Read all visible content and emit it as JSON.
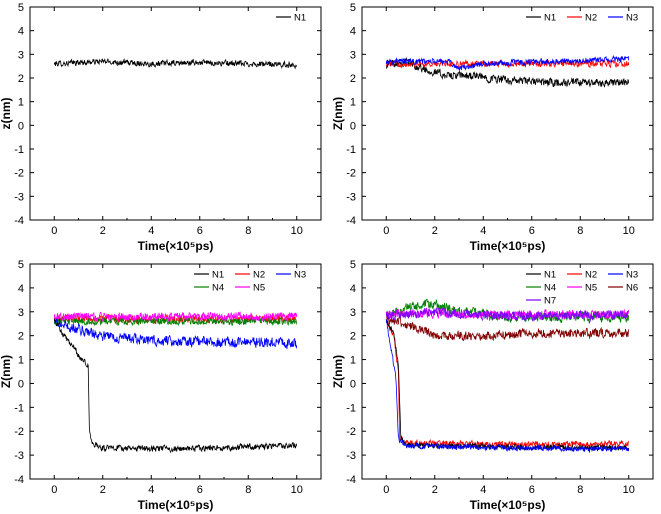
{
  "colors": {
    "N1": "#000000",
    "N2": "#ff0000",
    "N3": "#0000ff",
    "N4": "#008000",
    "N5": "#ff00ff",
    "N6": "#800000",
    "N7": "#8000ff"
  },
  "chart_data": [
    {
      "type": "line",
      "id": "top-left",
      "xlabel": "Time(×10⁵ps)",
      "ylabel": "z(nm)",
      "xlim": [
        -1,
        11
      ],
      "ylim": [
        -4,
        5
      ],
      "xticks": [
        "0",
        "2",
        "4",
        "6",
        "8",
        "10"
      ],
      "yticks": [
        "-4",
        "-3",
        "-2",
        "-1",
        "0",
        "1",
        "2",
        "3",
        "4",
        "5"
      ],
      "legend": [
        "N1"
      ],
      "legend_position": "top-right",
      "series": [
        {
          "name": "N1",
          "color": "#000000",
          "noise": 0.14,
          "x": [
            0,
            2,
            4,
            6,
            8,
            10
          ],
          "y": [
            2.6,
            2.7,
            2.6,
            2.65,
            2.6,
            2.55
          ]
        }
      ]
    },
    {
      "type": "line",
      "id": "top-right",
      "xlabel": "Time(×10⁵ps)",
      "ylabel": "Z(nm)",
      "xlim": [
        -1,
        11
      ],
      "ylim": [
        -4,
        5
      ],
      "xticks": [
        "0",
        "2",
        "4",
        "6",
        "8",
        "10"
      ],
      "yticks": [
        "-4",
        "-3",
        "-2",
        "-1",
        "0",
        "1",
        "2",
        "3",
        "4",
        "5"
      ],
      "legend": [
        "N1",
        "N2",
        "N3"
      ],
      "legend_position": "top-right",
      "series": [
        {
          "name": "N1",
          "color": "#000000",
          "noise": 0.2,
          "x": [
            0,
            0.8,
            1.5,
            2.5,
            3.5,
            5,
            7,
            10
          ],
          "y": [
            2.6,
            2.7,
            2.4,
            2.1,
            2.1,
            1.9,
            1.8,
            1.8
          ]
        },
        {
          "name": "N2",
          "color": "#ff0000",
          "noise": 0.15,
          "x": [
            0,
            5,
            10
          ],
          "y": [
            2.6,
            2.6,
            2.6
          ]
        },
        {
          "name": "N3",
          "color": "#0000ff",
          "noise": 0.15,
          "x": [
            0,
            2.5,
            3,
            4,
            7,
            10
          ],
          "y": [
            2.7,
            2.7,
            2.4,
            2.6,
            2.7,
            2.8
          ]
        }
      ]
    },
    {
      "type": "line",
      "id": "bottom-left",
      "xlabel": "Time(×10⁵ps)",
      "ylabel": "Z(nm)",
      "xlim": [
        -1,
        11
      ],
      "ylim": [
        -4,
        5
      ],
      "xticks": [
        "0",
        "2",
        "4",
        "6",
        "8",
        "10"
      ],
      "yticks": [
        "-4",
        "-3",
        "-2",
        "-1",
        "0",
        "1",
        "2",
        "3",
        "4",
        "5"
      ],
      "legend": [
        "N1",
        "N2",
        "N3",
        "N4",
        "N5"
      ],
      "legend_position": "top-right",
      "series": [
        {
          "name": "N2",
          "color": "#ff0000",
          "noise": 0.18,
          "x": [
            0,
            5,
            10
          ],
          "y": [
            2.7,
            2.7,
            2.7
          ]
        },
        {
          "name": "N4",
          "color": "#008000",
          "noise": 0.18,
          "x": [
            0,
            5,
            10
          ],
          "y": [
            2.6,
            2.6,
            2.6
          ]
        },
        {
          "name": "N3",
          "color": "#0000ff",
          "noise": 0.25,
          "x": [
            0,
            0.5,
            2,
            4,
            10
          ],
          "y": [
            2.6,
            2.4,
            2.0,
            1.8,
            1.7
          ]
        },
        {
          "name": "N5",
          "color": "#ff00ff",
          "noise": 0.2,
          "x": [
            0,
            5,
            10
          ],
          "y": [
            2.8,
            2.8,
            2.8
          ]
        },
        {
          "name": "N1",
          "color": "#000000",
          "noise": 0.15,
          "x": [
            0,
            0.4,
            0.8,
            1.1,
            1.4,
            1.45,
            1.6,
            2,
            5,
            10
          ],
          "y": [
            2.7,
            2.0,
            1.5,
            1.0,
            0.8,
            -2.0,
            -2.5,
            -2.7,
            -2.75,
            -2.6
          ]
        }
      ]
    },
    {
      "type": "line",
      "id": "bottom-right",
      "xlabel": "Time(×10⁵ps)",
      "ylabel": "Z(nm)",
      "xlim": [
        -1,
        11
      ],
      "ylim": [
        -4,
        5
      ],
      "xticks": [
        "0",
        "2",
        "4",
        "6",
        "8",
        "10"
      ],
      "yticks": [
        "-4",
        "-3",
        "-2",
        "-1",
        "0",
        "1",
        "2",
        "3",
        "4",
        "5"
      ],
      "legend": [
        "N1",
        "N2",
        "N3",
        "N4",
        "N5",
        "N6",
        "N7"
      ],
      "legend_position": "top-right",
      "series": [
        {
          "name": "N4",
          "color": "#008000",
          "noise": 0.25,
          "x": [
            0,
            1,
            2,
            3,
            5,
            10
          ],
          "y": [
            2.8,
            3.2,
            3.3,
            3.0,
            2.8,
            2.8
          ]
        },
        {
          "name": "N6",
          "color": "#800000",
          "noise": 0.22,
          "x": [
            0,
            0.5,
            1.2,
            2,
            4,
            6,
            10
          ],
          "y": [
            2.7,
            2.6,
            2.3,
            2.0,
            2.0,
            2.1,
            2.1
          ]
        },
        {
          "name": "N5",
          "color": "#ff00ff",
          "noise": 0.2,
          "x": [
            0,
            5,
            10
          ],
          "y": [
            2.9,
            2.9,
            2.9
          ]
        },
        {
          "name": "N7",
          "color": "#8000ff",
          "noise": 0.22,
          "x": [
            0,
            2,
            5,
            10
          ],
          "y": [
            2.8,
            3.0,
            2.8,
            2.9
          ]
        },
        {
          "name": "N2",
          "color": "#ff0000",
          "noise": 0.14,
          "x": [
            0,
            0.3,
            0.5,
            0.55,
            0.8,
            5,
            10
          ],
          "y": [
            2.6,
            2.0,
            0.5,
            -2.2,
            -2.5,
            -2.55,
            -2.5
          ]
        },
        {
          "name": "N1",
          "color": "#000000",
          "noise": 0.13,
          "x": [
            0,
            0.3,
            0.5,
            0.6,
            0.8,
            5,
            10
          ],
          "y": [
            2.6,
            2.2,
            0.8,
            -2.2,
            -2.6,
            -2.65,
            -2.7
          ]
        },
        {
          "name": "N3",
          "color": "#0000ff",
          "noise": 0.13,
          "x": [
            0,
            0.2,
            0.4,
            0.5,
            0.8,
            5,
            10
          ],
          "y": [
            2.6,
            1.5,
            0.2,
            -2.3,
            -2.6,
            -2.7,
            -2.75
          ]
        }
      ]
    }
  ]
}
